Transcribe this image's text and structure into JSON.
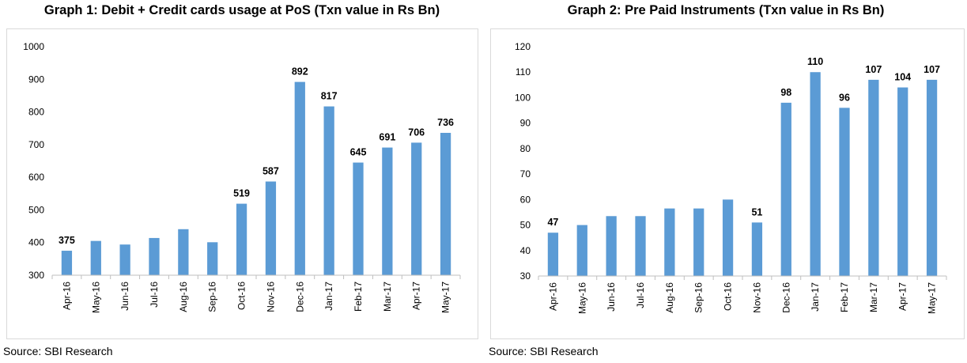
{
  "charts": [
    {
      "title": "Graph 1: Debit + Credit cards usage at PoS (Txn value in Rs Bn)",
      "source": "Source: SBI Research"
    },
    {
      "title": "Graph 2: Pre Paid Instruments  (Txn value in Rs Bn)",
      "source": "Source: SBI Research"
    }
  ],
  "chart_data": [
    {
      "type": "bar",
      "title": "Graph 1: Debit + Credit cards usage at PoS (Txn value in Rs Bn)",
      "xlabel": "",
      "ylabel": "",
      "categories": [
        "Apr-16",
        "May-16",
        "Jun-16",
        "Jul-16",
        "Aug-16",
        "Sep-16",
        "Oct-16",
        "Nov-16",
        "Dec-16",
        "Jan-17",
        "Feb-17",
        "Mar-17",
        "Apr-17",
        "May-17"
      ],
      "values": [
        375,
        405,
        394,
        414,
        441,
        401,
        519,
        587,
        892,
        817,
        645,
        691,
        706,
        736
      ],
      "data_labels": [
        "375",
        null,
        null,
        null,
        null,
        null,
        "519",
        "587",
        "892",
        "817",
        "645",
        "691",
        "706",
        "736"
      ],
      "ylim": [
        300,
        1000
      ],
      "yticks": [
        300,
        400,
        500,
        600,
        700,
        800,
        900,
        1000
      ],
      "grid": false,
      "bar_color": "#5b9bd5"
    },
    {
      "type": "bar",
      "title": "Graph 2: Pre Paid Instruments  (Txn value in Rs Bn)",
      "xlabel": "",
      "ylabel": "",
      "categories": [
        "Apr-16",
        "May-16",
        "Jun-16",
        "Jul-16",
        "Aug-16",
        "Sep-16",
        "Oct-16",
        "Nov-16",
        "Dec-16",
        "Jan-17",
        "Feb-17",
        "Mar-17",
        "Apr-17",
        "May-17"
      ],
      "values": [
        47,
        50,
        53.5,
        53.5,
        56.5,
        56.5,
        60,
        51,
        98,
        110,
        96,
        107,
        104,
        107
      ],
      "data_labels": [
        "47",
        null,
        null,
        null,
        null,
        null,
        null,
        "51",
        "98",
        "110",
        "96",
        "107",
        "104",
        "107"
      ],
      "ylim": [
        30,
        120
      ],
      "yticks": [
        30,
        40,
        50,
        60,
        70,
        80,
        90,
        100,
        110,
        120
      ],
      "grid": false,
      "bar_color": "#5b9bd5"
    }
  ]
}
